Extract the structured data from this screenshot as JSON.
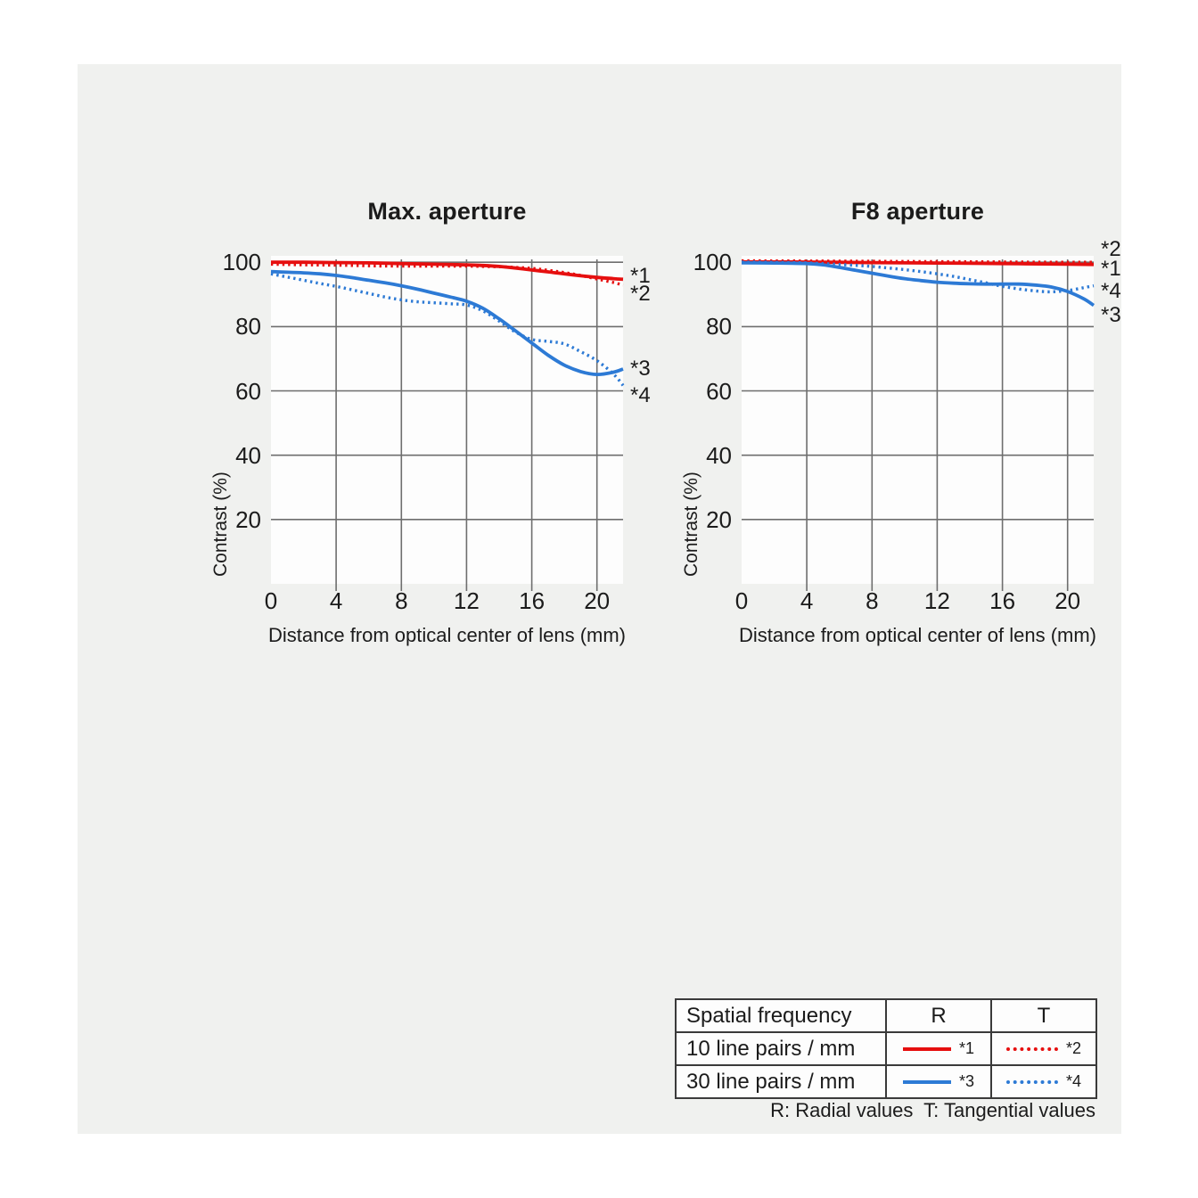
{
  "colors": {
    "red": "#e60f0f",
    "blue": "#2d7ad5",
    "grid": "#6e6e6e",
    "text": "#1b1b1b",
    "card_background": "#f0f1ef",
    "plot_background": "#fdfdfd"
  },
  "chart_data": {
    "type": "line",
    "xlabel": "Distance from optical center of lens (mm)",
    "ylabel": "Contrast (%)",
    "xlim": [
      0,
      21.6
    ],
    "ylim": [
      0,
      102
    ],
    "x_ticks": [
      0,
      4,
      8,
      12,
      16,
      20
    ],
    "y_ticks": [
      100,
      80,
      60,
      40,
      20
    ],
    "grid": true,
    "charts": [
      {
        "title": "Max. aperture",
        "series": [
          {
            "name": "*1",
            "legend": "10 line pairs / mm, Radial",
            "color": "red",
            "style": "solid",
            "points": [
              [
                0,
                100
              ],
              [
                2,
                100
              ],
              [
                4,
                99.9
              ],
              [
                6,
                99.8
              ],
              [
                8,
                99.6
              ],
              [
                10,
                99.4
              ],
              [
                12,
                99.2
              ],
              [
                13,
                99.0
              ],
              [
                14,
                98.7
              ],
              [
                15,
                98.2
              ],
              [
                16,
                97.6
              ],
              [
                17,
                97.0
              ],
              [
                18,
                96.4
              ],
              [
                19,
                95.8
              ],
              [
                20,
                95.3
              ],
              [
                21,
                94.9
              ],
              [
                21.6,
                94.7
              ]
            ]
          },
          {
            "name": "*2",
            "legend": "10 line pairs / mm, Tangential",
            "color": "red",
            "style": "dotted",
            "points": [
              [
                0,
                99.4
              ],
              [
                2,
                99.2
              ],
              [
                4,
                99.1
              ],
              [
                6,
                98.9
              ],
              [
                8,
                98.8
              ],
              [
                10,
                98.8
              ],
              [
                12,
                98.8
              ],
              [
                13,
                98.7
              ],
              [
                14,
                98.6
              ],
              [
                15,
                98.4
              ],
              [
                16,
                98.1
              ],
              [
                17,
                97.5
              ],
              [
                18,
                96.8
              ],
              [
                19,
                95.9
              ],
              [
                20,
                94.8
              ],
              [
                21,
                93.7
              ],
              [
                21.6,
                92.9
              ]
            ]
          },
          {
            "name": "*3",
            "legend": "30 line pairs / mm, Radial",
            "color": "blue",
            "style": "solid",
            "points": [
              [
                0,
                97.1
              ],
              [
                1,
                96.9
              ],
              [
                2,
                96.7
              ],
              [
                3,
                96.4
              ],
              [
                4,
                95.9
              ],
              [
                5,
                95.2
              ],
              [
                6,
                94.4
              ],
              [
                7,
                93.6
              ],
              [
                8,
                92.7
              ],
              [
                9,
                91.6
              ],
              [
                10,
                90.4
              ],
              [
                11,
                89.2
              ],
              [
                12,
                87.9
              ],
              [
                13,
                85.7
              ],
              [
                14,
                82.4
              ],
              [
                15,
                78.7
              ],
              [
                16,
                74.9
              ],
              [
                17,
                71.1
              ],
              [
                18,
                68.0
              ],
              [
                19,
                66.0
              ],
              [
                20,
                65.1
              ],
              [
                21,
                65.8
              ],
              [
                21.6,
                66.8
              ]
            ]
          },
          {
            "name": "*4",
            "legend": "30 line pairs / mm, Tangential",
            "color": "blue",
            "style": "dotted",
            "points": [
              [
                0,
                96.4
              ],
              [
                1,
                95.4
              ],
              [
                2,
                94.4
              ],
              [
                3,
                93.4
              ],
              [
                4,
                92.5
              ],
              [
                5,
                91.4
              ],
              [
                6,
                90.3
              ],
              [
                7,
                89.2
              ],
              [
                8,
                88.3
              ],
              [
                9,
                87.7
              ],
              [
                10,
                87.4
              ],
              [
                11,
                87.1
              ],
              [
                12,
                86.7
              ],
              [
                13,
                84.9
              ],
              [
                14,
                81.7
              ],
              [
                15,
                78.3
              ],
              [
                16,
                76.0
              ],
              [
                17,
                75.4
              ],
              [
                18,
                74.6
              ],
              [
                19,
                72.2
              ],
              [
                20,
                69.4
              ],
              [
                21,
                65.3
              ],
              [
                21.6,
                61.7
              ]
            ]
          }
        ],
        "right_labels": [
          {
            "text": "*1",
            "at": 95.7
          },
          {
            "text": "*2",
            "at": 90.1
          },
          {
            "text": "*3",
            "at": 66.8
          },
          {
            "text": "*4",
            "at": 58.5
          }
        ]
      },
      {
        "title": "F8 aperture",
        "series": [
          {
            "name": "*1",
            "legend": "10 line pairs / mm, Radial",
            "color": "red",
            "style": "solid",
            "points": [
              [
                0,
                100.1
              ],
              [
                4,
                100.05
              ],
              [
                8,
                99.9
              ],
              [
                12,
                99.75
              ],
              [
                16,
                99.6
              ],
              [
                20,
                99.4
              ],
              [
                21.6,
                99.3
              ]
            ]
          },
          {
            "name": "*2",
            "legend": "10 line pairs / mm, Tangential",
            "color": "red",
            "style": "dotted",
            "points": [
              [
                0,
                100.45
              ],
              [
                4,
                100.4
              ],
              [
                8,
                100.3
              ],
              [
                12,
                100.2
              ],
              [
                16,
                100.1
              ],
              [
                20,
                100.0
              ],
              [
                21.6,
                100.0
              ]
            ]
          },
          {
            "name": "*3",
            "legend": "30 line pairs / mm, Radial",
            "color": "blue",
            "style": "solid",
            "points": [
              [
                0,
                99.8
              ],
              [
                2,
                99.75
              ],
              [
                4,
                99.6
              ],
              [
                5,
                99.2
              ],
              [
                6,
                98.4
              ],
              [
                7,
                97.5
              ],
              [
                8,
                96.6
              ],
              [
                9,
                95.7
              ],
              [
                10,
                94.9
              ],
              [
                11,
                94.3
              ],
              [
                12,
                93.8
              ],
              [
                13,
                93.5
              ],
              [
                14,
                93.3
              ],
              [
                15,
                93.2
              ],
              [
                16,
                93.2
              ],
              [
                17,
                93.2
              ],
              [
                18,
                92.9
              ],
              [
                19,
                92.3
              ],
              [
                20,
                90.9
              ],
              [
                21,
                88.6
              ],
              [
                21.6,
                86.6
              ]
            ]
          },
          {
            "name": "*4",
            "legend": "30 line pairs / mm, Tangential",
            "color": "blue",
            "style": "dotted",
            "points": [
              [
                0,
                100.1
              ],
              [
                2,
                100.0
              ],
              [
                4,
                99.8
              ],
              [
                6,
                99.3
              ],
              [
                8,
                98.7
              ],
              [
                9,
                98.2
              ],
              [
                10,
                97.7
              ],
              [
                11,
                97.1
              ],
              [
                12,
                96.4
              ],
              [
                13,
                95.6
              ],
              [
                14,
                94.6
              ],
              [
                15,
                93.6
              ],
              [
                16,
                92.5
              ],
              [
                17,
                91.7
              ],
              [
                18,
                91.1
              ],
              [
                19,
                90.8
              ],
              [
                20,
                91.2
              ],
              [
                21,
                92.1
              ],
              [
                21.6,
                92.7
              ]
            ]
          }
        ],
        "right_labels": [
          {
            "text": "*2",
            "at": 104.0
          },
          {
            "text": "*1",
            "at": 97.9
          },
          {
            "text": "*4",
            "at": 91.0
          },
          {
            "text": "*3",
            "at": 83.5
          }
        ]
      }
    ]
  },
  "legend": {
    "header": [
      "Spatial frequency",
      "R",
      "T"
    ],
    "rows": [
      {
        "label": "10 line pairs / mm",
        "r": {
          "tag": "*1",
          "color": "red",
          "style": "solid"
        },
        "t": {
          "tag": "*2",
          "color": "red",
          "style": "dotted"
        }
      },
      {
        "label": "30 line pairs / mm",
        "r": {
          "tag": "*3",
          "color": "blue",
          "style": "solid"
        },
        "t": {
          "tag": "*4",
          "color": "blue",
          "style": "dotted"
        }
      }
    ],
    "footnote": "R: Radial values  T: Tangential values"
  }
}
